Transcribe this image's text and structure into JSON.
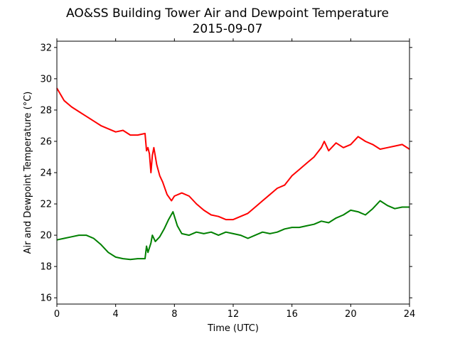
{
  "chart_data": {
    "type": "line",
    "title": "AO&SS Building Tower Air and Dewpoint Temperature",
    "subtitle": "2015-09-07",
    "xlabel": "Time (UTC)",
    "ylabel": "Air and Dewpoint Temperature (°C)",
    "xlim": [
      0,
      24
    ],
    "ylim": [
      15.6,
      32.4
    ],
    "x_ticks": [
      "0",
      "4",
      "8",
      "12",
      "16",
      "20",
      "24"
    ],
    "y_ticks": [
      "16",
      "18",
      "20",
      "22",
      "24",
      "26",
      "28",
      "30",
      "32"
    ],
    "grid": false,
    "series": [
      {
        "color": "#ff0000",
        "x": [
          0,
          0.5,
          1,
          1.5,
          2,
          2.5,
          3,
          3.5,
          4,
          4.5,
          5,
          5.5,
          6,
          6.1,
          6.2,
          6.3,
          6.4,
          6.5,
          6.6,
          6.8,
          7,
          7.2,
          7.5,
          7.8,
          8,
          8.5,
          9,
          9.5,
          10,
          10.5,
          11,
          11.5,
          12,
          12.5,
          13,
          13.5,
          14,
          14.5,
          15,
          15.5,
          16,
          16.5,
          17,
          17.5,
          18,
          18.2,
          18.5,
          19,
          19.5,
          20,
          20.5,
          21,
          21.5,
          22,
          22.5,
          23,
          23.5,
          24
        ],
        "y": [
          29.4,
          28.6,
          28.2,
          27.9,
          27.6,
          27.3,
          27.0,
          26.8,
          26.6,
          26.7,
          26.4,
          26.4,
          26.5,
          25.4,
          25.6,
          25.2,
          24.0,
          25.1,
          25.6,
          24.5,
          23.8,
          23.4,
          22.6,
          22.2,
          22.5,
          22.7,
          22.5,
          22.0,
          21.6,
          21.3,
          21.2,
          21.0,
          21.0,
          21.2,
          21.4,
          21.8,
          22.2,
          22.6,
          23.0,
          23.2,
          23.8,
          24.2,
          24.6,
          25.0,
          25.6,
          26.0,
          25.4,
          25.9,
          25.6,
          25.8,
          26.3,
          26.0,
          25.8,
          25.5,
          25.6,
          25.7,
          25.8,
          25.5
        ]
      },
      {
        "color": "#008000",
        "x": [
          0,
          0.5,
          1,
          1.5,
          2,
          2.5,
          3,
          3.5,
          4,
          4.5,
          5,
          5.5,
          6,
          6.1,
          6.2,
          6.3,
          6.4,
          6.5,
          6.7,
          7,
          7.3,
          7.6,
          7.9,
          8.2,
          8.5,
          9,
          9.5,
          10,
          10.5,
          11,
          11.5,
          12,
          12.5,
          13,
          13.5,
          14,
          14.5,
          15,
          15.5,
          16,
          16.5,
          17,
          17.5,
          18,
          18.5,
          19,
          19.5,
          20,
          20.5,
          21,
          21.5,
          22,
          22.5,
          23,
          23.5,
          24
        ],
        "y": [
          19.7,
          19.8,
          19.9,
          20.0,
          20.0,
          19.8,
          19.4,
          18.9,
          18.6,
          18.5,
          18.45,
          18.5,
          18.5,
          19.3,
          18.9,
          19.2,
          19.5,
          20.0,
          19.6,
          19.9,
          20.4,
          21.0,
          21.5,
          20.6,
          20.1,
          20.0,
          20.2,
          20.1,
          20.2,
          20.0,
          20.2,
          20.1,
          20.0,
          19.8,
          20.0,
          20.2,
          20.1,
          20.2,
          20.4,
          20.5,
          20.5,
          20.6,
          20.7,
          20.9,
          20.8,
          21.1,
          21.3,
          21.6,
          21.5,
          21.3,
          21.7,
          22.2,
          21.9,
          21.7,
          21.8,
          21.8
        ]
      }
    ]
  }
}
